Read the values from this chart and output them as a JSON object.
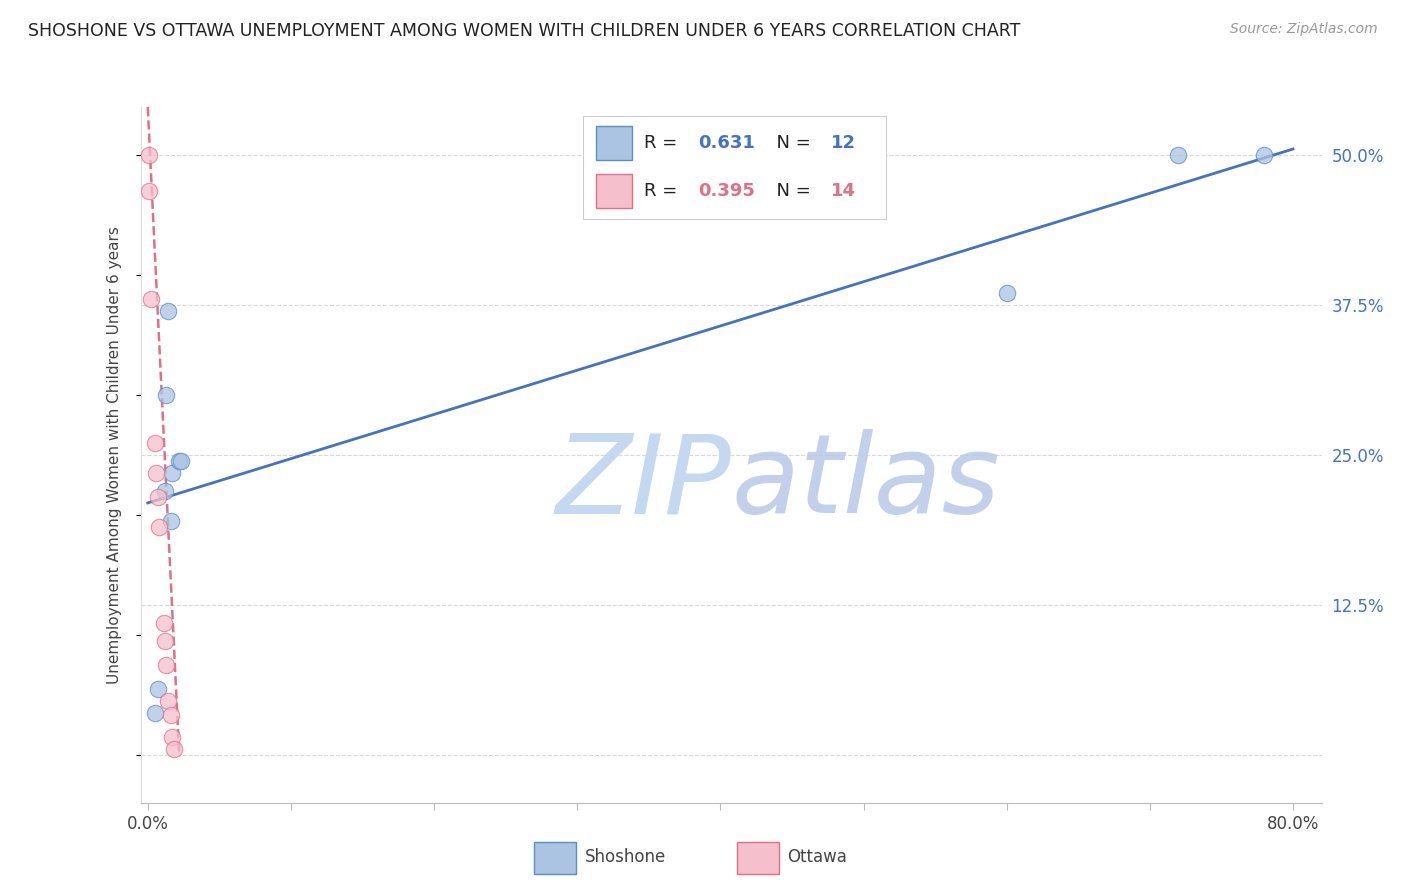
{
  "title": "SHOSHONE VS OTTAWA UNEMPLOYMENT AMONG WOMEN WITH CHILDREN UNDER 6 YEARS CORRELATION CHART",
  "source": "Source: ZipAtlas.com",
  "ylabel": "Unemployment Among Women with Children Under 6 years",
  "shoshone_r": 0.631,
  "shoshone_n": 12,
  "ottawa_r": 0.395,
  "ottawa_n": 14,
  "xlim": [
    -0.005,
    0.82
  ],
  "ylim": [
    -0.04,
    0.54
  ],
  "xticks": [
    0.0,
    0.1,
    0.2,
    0.3,
    0.4,
    0.5,
    0.6,
    0.7,
    0.8
  ],
  "yticks_right": [
    0.0,
    0.125,
    0.25,
    0.375,
    0.5
  ],
  "ytick_labels_right": [
    "",
    "12.5%",
    "25.0%",
    "37.5%",
    "50.0%"
  ],
  "shoshone_color": "#aac4e2",
  "shoshone_edge_color": "#5b8dc8",
  "shoshone_line_color": "#4472c4",
  "ottawa_color": "#f5bfcc",
  "ottawa_edge_color": "#e0708a",
  "ottawa_line_color": "#e0708a",
  "background_color": "#ffffff",
  "grid_color": "#d8d8d8",
  "watermark_color": "#d0dff0",
  "shoshone_x": [
    0.005,
    0.007,
    0.012,
    0.013,
    0.014,
    0.016,
    0.017,
    0.022,
    0.023,
    0.6,
    0.72,
    0.78
  ],
  "shoshone_y": [
    0.035,
    0.055,
    0.22,
    0.3,
    0.37,
    0.195,
    0.235,
    0.245,
    0.245,
    0.385,
    0.5,
    0.5
  ],
  "ottawa_x": [
    0.001,
    0.001,
    0.002,
    0.005,
    0.006,
    0.007,
    0.008,
    0.011,
    0.012,
    0.013,
    0.014,
    0.016,
    0.017,
    0.018
  ],
  "ottawa_y": [
    0.5,
    0.47,
    0.38,
    0.26,
    0.235,
    0.215,
    0.19,
    0.11,
    0.095,
    0.075,
    0.045,
    0.033,
    0.015,
    0.005
  ],
  "shoshone_line_x": [
    0.0,
    0.8
  ],
  "shoshone_line_y": [
    0.21,
    0.505
  ],
  "ottawa_line_x": [
    0.0,
    0.022
  ],
  "ottawa_line_y": [
    0.54,
    0.0
  ]
}
